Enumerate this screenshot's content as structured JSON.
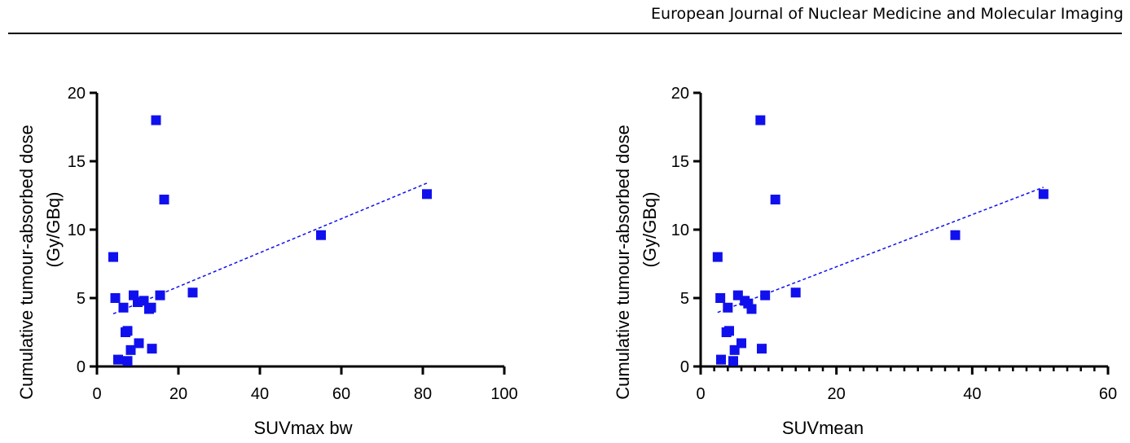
{
  "header": {
    "journal": "European Journal of Nuclear Medicine and Molecular Imaging"
  },
  "chart_data": [
    {
      "type": "scatter",
      "xlabel": "SUVmax bw",
      "ylabel": "Cumulative tumour-absorbed dose",
      "ylabel_unit": "(Gy/GBq)",
      "xlim": [
        0,
        100
      ],
      "ylim": [
        0,
        20
      ],
      "xticks": [
        0,
        20,
        40,
        60,
        80,
        100
      ],
      "yticks": [
        0,
        5,
        10,
        15,
        20
      ],
      "marker_color": "#1010ee",
      "grid": false,
      "points": [
        {
          "x": 4.0,
          "y": 8.0
        },
        {
          "x": 4.5,
          "y": 5.0
        },
        {
          "x": 5.2,
          "y": 0.5
        },
        {
          "x": 6.5,
          "y": 4.3
        },
        {
          "x": 7.0,
          "y": 2.5
        },
        {
          "x": 7.5,
          "y": 2.6
        },
        {
          "x": 7.5,
          "y": 0.4
        },
        {
          "x": 8.3,
          "y": 1.2
        },
        {
          "x": 9.0,
          "y": 5.2
        },
        {
          "x": 10.0,
          "y": 4.7
        },
        {
          "x": 10.3,
          "y": 1.7
        },
        {
          "x": 11.5,
          "y": 4.8
        },
        {
          "x": 12.8,
          "y": 4.2
        },
        {
          "x": 13.3,
          "y": 4.3
        },
        {
          "x": 13.5,
          "y": 1.3
        },
        {
          "x": 14.5,
          "y": 18.0
        },
        {
          "x": 15.5,
          "y": 5.2
        },
        {
          "x": 16.5,
          "y": 12.2
        },
        {
          "x": 23.5,
          "y": 5.4
        },
        {
          "x": 55.0,
          "y": 9.6
        },
        {
          "x": 81.0,
          "y": 12.6
        }
      ],
      "trendline": {
        "x": [
          4,
          81
        ],
        "y": [
          3.85,
          13.4
        ]
      }
    },
    {
      "type": "scatter",
      "xlabel": "SUVmean",
      "ylabel": "Cumulative tumour-absorbed dose",
      "ylabel_unit": "(Gy/GBq)",
      "xlim": [
        0,
        60
      ],
      "ylim": [
        0,
        20
      ],
      "xticks": [
        0,
        20,
        40,
        60
      ],
      "yticks": [
        0,
        5,
        10,
        15,
        20
      ],
      "x_minor_step": 2,
      "marker_color": "#1010ee",
      "grid": false,
      "points": [
        {
          "x": 2.5,
          "y": 8.0
        },
        {
          "x": 2.9,
          "y": 5.0
        },
        {
          "x": 3.0,
          "y": 0.5
        },
        {
          "x": 3.8,
          "y": 2.5
        },
        {
          "x": 4.0,
          "y": 4.3
        },
        {
          "x": 4.2,
          "y": 2.6
        },
        {
          "x": 4.8,
          "y": 0.4
        },
        {
          "x": 5.0,
          "y": 1.2
        },
        {
          "x": 5.5,
          "y": 5.2
        },
        {
          "x": 6.0,
          "y": 1.7
        },
        {
          "x": 6.5,
          "y": 4.8
        },
        {
          "x": 7.0,
          "y": 4.6
        },
        {
          "x": 7.5,
          "y": 4.2
        },
        {
          "x": 8.8,
          "y": 18.0
        },
        {
          "x": 9.0,
          "y": 1.3
        },
        {
          "x": 9.5,
          "y": 5.2
        },
        {
          "x": 11.0,
          "y": 12.2
        },
        {
          "x": 14.0,
          "y": 5.4
        },
        {
          "x": 37.5,
          "y": 9.6
        },
        {
          "x": 50.5,
          "y": 12.6
        }
      ],
      "trendline": {
        "x": [
          2.5,
          50.5
        ],
        "y": [
          3.95,
          13.1
        ]
      }
    }
  ]
}
